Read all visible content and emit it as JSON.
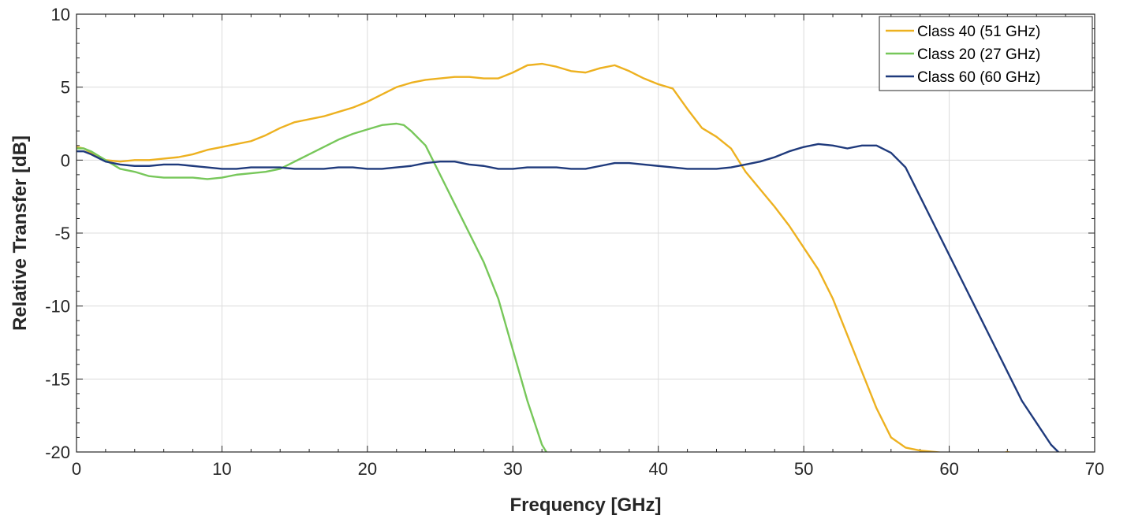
{
  "chart_data": {
    "type": "line",
    "title": "",
    "xlabel": "Frequency [GHz]",
    "ylabel": "Relative Transfer [dB]",
    "xlim": [
      0,
      70
    ],
    "ylim": [
      -20,
      10
    ],
    "xticks": [
      0,
      10,
      20,
      30,
      40,
      50,
      60,
      70
    ],
    "yticks": [
      -20,
      -15,
      -10,
      -5,
      0,
      5,
      10
    ],
    "grid": true,
    "minor_ticks": true,
    "legend_position": "top-right",
    "series": [
      {
        "name": "Class 40 (51 GHz)",
        "color": "#EDB120",
        "x": [
          0,
          0.5,
          1,
          2,
          3,
          4,
          5,
          6,
          7,
          8,
          9,
          10,
          11,
          12,
          13,
          14,
          15,
          16,
          17,
          18,
          19,
          20,
          21,
          22,
          23,
          24,
          25,
          26,
          27,
          28,
          29,
          30,
          31,
          32,
          33,
          34,
          35,
          36,
          37,
          38,
          39,
          40,
          41,
          42,
          43,
          44,
          45,
          46,
          47,
          48,
          49,
          50,
          51,
          52,
          53,
          54,
          55,
          56,
          57,
          58,
          59,
          60,
          61,
          62,
          63,
          64,
          65
        ],
        "y": [
          0.9,
          0.8,
          0.5,
          0.0,
          -0.1,
          0.0,
          0.0,
          0.1,
          0.2,
          0.4,
          0.7,
          0.9,
          1.1,
          1.3,
          1.7,
          2.2,
          2.6,
          2.8,
          3.0,
          3.3,
          3.6,
          4.0,
          4.5,
          5.0,
          5.3,
          5.5,
          5.6,
          5.7,
          5.7,
          5.6,
          5.6,
          6.0,
          6.5,
          6.6,
          6.4,
          6.1,
          6.0,
          6.3,
          6.5,
          6.1,
          5.6,
          5.2,
          4.9,
          3.5,
          2.2,
          1.6,
          0.8,
          -0.8,
          -2.0,
          -3.2,
          -4.5,
          -6.0,
          -7.5,
          -9.5,
          -12.0,
          -14.5,
          -17.0,
          -19.0,
          -19.7,
          -19.9,
          -20.0,
          -20.1,
          -20.3,
          -20.3,
          -20.2,
          -20.0,
          -20.2
        ]
      },
      {
        "name": "Class 20 (27 GHz)",
        "color": "#77C75A",
        "x": [
          0,
          0.5,
          1,
          2,
          3,
          4,
          5,
          6,
          7,
          8,
          9,
          10,
          11,
          12,
          13,
          14,
          15,
          16,
          17,
          18,
          19,
          20,
          21,
          22,
          22.5,
          23,
          24,
          25,
          26,
          27,
          28,
          29,
          30,
          31,
          32,
          32.3
        ],
        "y": [
          0.8,
          0.8,
          0.6,
          0.0,
          -0.6,
          -0.8,
          -1.1,
          -1.2,
          -1.2,
          -1.2,
          -1.3,
          -1.2,
          -1.0,
          -0.9,
          -0.8,
          -0.6,
          -0.1,
          0.4,
          0.9,
          1.4,
          1.8,
          2.1,
          2.4,
          2.5,
          2.4,
          2.0,
          1.0,
          -1.0,
          -3.0,
          -5.0,
          -7.0,
          -9.5,
          -13.0,
          -16.5,
          -19.5,
          -20.0
        ]
      },
      {
        "name": "Class 60 (60 GHz)",
        "color": "#1F3A7C",
        "x": [
          0,
          0.5,
          1,
          2,
          3,
          4,
          5,
          6,
          7,
          8,
          9,
          10,
          11,
          12,
          13,
          14,
          15,
          16,
          17,
          18,
          19,
          20,
          21,
          22,
          23,
          24,
          25,
          26,
          27,
          28,
          29,
          30,
          31,
          32,
          33,
          34,
          35,
          36,
          37,
          38,
          39,
          40,
          41,
          42,
          43,
          44,
          45,
          46,
          47,
          48,
          49,
          50,
          51,
          52,
          53,
          54,
          55,
          56,
          57,
          58,
          59,
          60,
          61,
          62,
          63,
          64,
          65,
          66,
          67,
          67.5
        ],
        "y": [
          0.6,
          0.6,
          0.4,
          -0.1,
          -0.3,
          -0.4,
          -0.4,
          -0.3,
          -0.3,
          -0.4,
          -0.5,
          -0.6,
          -0.6,
          -0.5,
          -0.5,
          -0.5,
          -0.6,
          -0.6,
          -0.6,
          -0.5,
          -0.5,
          -0.6,
          -0.6,
          -0.5,
          -0.4,
          -0.2,
          -0.1,
          -0.1,
          -0.3,
          -0.4,
          -0.6,
          -0.6,
          -0.5,
          -0.5,
          -0.5,
          -0.6,
          -0.6,
          -0.4,
          -0.2,
          -0.2,
          -0.3,
          -0.4,
          -0.5,
          -0.6,
          -0.6,
          -0.6,
          -0.5,
          -0.3,
          -0.1,
          0.2,
          0.6,
          0.9,
          1.1,
          1.0,
          0.8,
          1.0,
          1.0,
          0.5,
          -0.5,
          -2.5,
          -4.5,
          -6.5,
          -8.5,
          -10.5,
          -12.5,
          -14.5,
          -16.5,
          -18.0,
          -19.5,
          -20.0
        ]
      }
    ]
  }
}
